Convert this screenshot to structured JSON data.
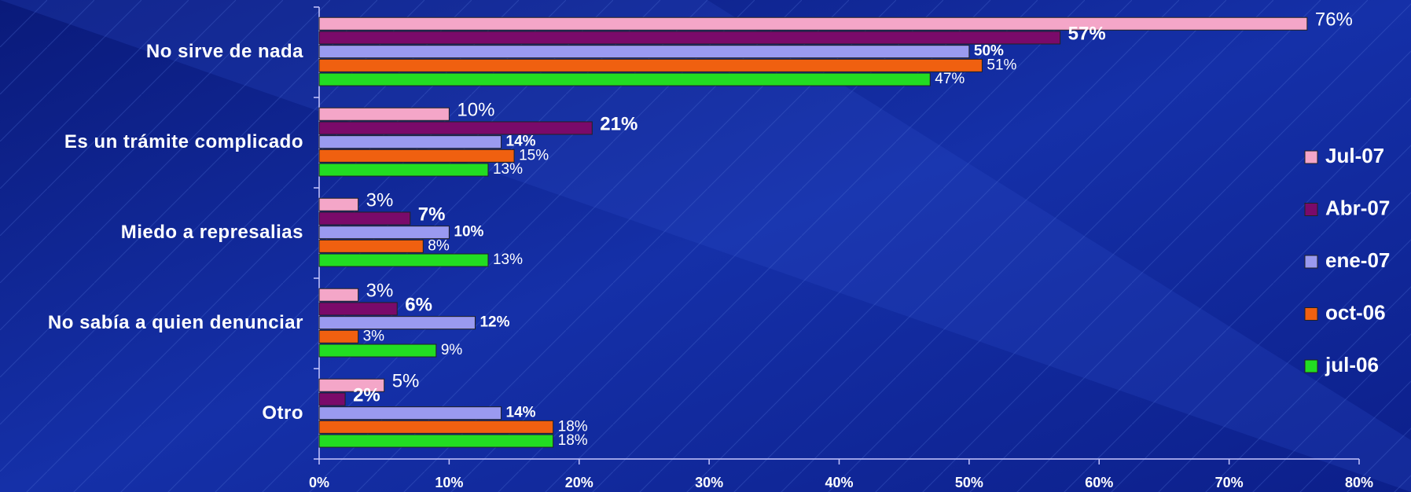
{
  "chart_data": {
    "type": "hbar",
    "categories": [
      "No sirve de nada",
      "Es un trámite complicado",
      "Miedo a represalias",
      "No sabía a quien denunciar",
      "Otro"
    ],
    "series": [
      {
        "name": "Jul-07",
        "color": "#f4a6c8",
        "values": [
          76,
          10,
          3,
          3,
          5
        ],
        "value_labels": [
          "76%",
          "10%",
          "3%",
          "3%",
          "5%"
        ],
        "label_color": "#ffff33",
        "label_bold": false
      },
      {
        "name": "Abr-07",
        "color": "#7a0a6a",
        "values": [
          57,
          21,
          7,
          6,
          2
        ],
        "value_labels": [
          "57%",
          "21%",
          "7%",
          "6%",
          "2%"
        ],
        "label_color": "#ffff33",
        "label_bold": true
      },
      {
        "name": "ene-07",
        "color": "#9a9af0",
        "values": [
          50,
          14,
          10,
          12,
          14
        ],
        "value_labels": [
          "50%",
          "14%",
          "10%",
          "12%",
          "14%"
        ],
        "label_color": "#ffffff",
        "label_bold": true
      },
      {
        "name": "oct-06",
        "color": "#f06010",
        "values": [
          51,
          15,
          8,
          3,
          18
        ],
        "value_labels": [
          "51%",
          "15%",
          "8%",
          "3%",
          "18%"
        ],
        "label_color": "#ffffff",
        "label_bold": false
      },
      {
        "name": "jul-06",
        "color": "#22dd22",
        "values": [
          47,
          13,
          13,
          9,
          18
        ],
        "value_labels": [
          "47%",
          "13%",
          "13%",
          "9%",
          "18%"
        ],
        "label_color": "#ffffff",
        "label_bold": false
      }
    ],
    "xlim": [
      0,
      80
    ],
    "xticks": [
      {
        "value": 0,
        "label": "0%"
      },
      {
        "value": 10,
        "label": "10%"
      },
      {
        "value": 20,
        "label": "20%"
      },
      {
        "value": 30,
        "label": "30%"
      },
      {
        "value": 40,
        "label": "40%"
      },
      {
        "value": 50,
        "label": "50%"
      },
      {
        "value": 60,
        "label": "60%"
      },
      {
        "value": 70,
        "label": "70%"
      },
      {
        "value": 80,
        "label": "80%"
      }
    ],
    "legend": "right"
  }
}
